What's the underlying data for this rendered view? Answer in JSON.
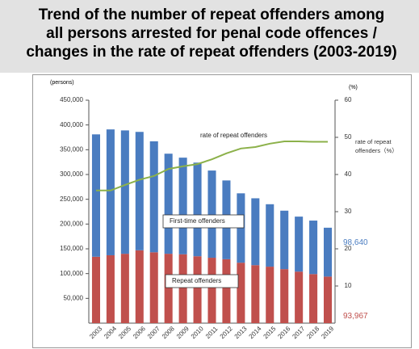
{
  "chart_data": {
    "type": "bar",
    "stacked": true,
    "title": [
      "Trend of the number of repeat offenders among",
      "all persons arrested for penal code offences /",
      "changes in the rate of repeat offenders (2003-2019)"
    ],
    "ylabel": "(persons)",
    "y2label": "(%)",
    "y2_note": [
      "rate of repeat",
      "offenders（%）"
    ],
    "categories": [
      "2003",
      "2004",
      "2005",
      "2006",
      "2007",
      "2008",
      "2009",
      "2010",
      "2011",
      "2012",
      "2013",
      "2014",
      "2015",
      "2016",
      "2017",
      "2018",
      "2019"
    ],
    "series": [
      {
        "name": "Repeat offenders",
        "color": "#c0504d",
        "values": [
          134000,
          137000,
          140000,
          147000,
          143000,
          140000,
          139000,
          135000,
          132000,
          129000,
          122000,
          117000,
          114000,
          109000,
          104000,
          99000,
          93967
        ],
        "value_labels": [
          null,
          null,
          null,
          null,
          null,
          null,
          null,
          null,
          null,
          null,
          null,
          null,
          null,
          null,
          null,
          null,
          "93,967"
        ]
      },
      {
        "name": "First-time offenders",
        "color": "#4a7cc0",
        "values": [
          247000,
          254000,
          249000,
          239000,
          224000,
          202000,
          195000,
          189000,
          176000,
          159000,
          140000,
          135000,
          126000,
          118000,
          111000,
          108000,
          98640
        ],
        "value_labels": [
          null,
          null,
          null,
          null,
          null,
          null,
          null,
          null,
          null,
          null,
          null,
          null,
          null,
          null,
          null,
          null,
          "98,640"
        ]
      },
      {
        "name": "rate of repeat offenders",
        "color": "#8cb14a",
        "type": "line",
        "axis": "y2",
        "values": [
          35.7,
          35.7,
          37.2,
          38.6,
          39.6,
          41.5,
          42.2,
          42.8,
          44.1,
          45.7,
          47.0,
          47.4,
          48.3,
          48.9,
          48.9,
          48.8,
          48.8
        ]
      }
    ],
    "ylim": [
      0,
      450000
    ],
    "yticks": [
      {
        "value": 50000,
        "label": "50,000"
      },
      {
        "value": 100000,
        "label": "100,000"
      },
      {
        "value": 150000,
        "label": "150,000"
      },
      {
        "value": 200000,
        "label": "200,000"
      },
      {
        "value": 250000,
        "label": "250,000"
      },
      {
        "value": 300000,
        "label": "300,000"
      },
      {
        "value": 350000,
        "label": "350,000"
      },
      {
        "value": 400000,
        "label": "400,000"
      },
      {
        "value": 450000,
        "label": "450,000"
      }
    ],
    "y2lim": [
      0,
      60
    ],
    "y2ticks": [
      10,
      20,
      30,
      40,
      50,
      60
    ]
  }
}
